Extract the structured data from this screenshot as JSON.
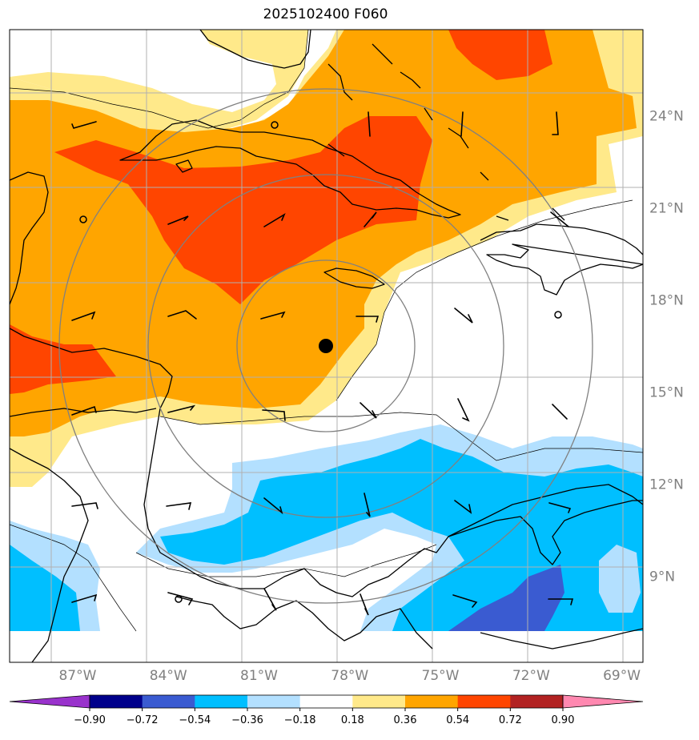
{
  "title": "2025102400 F060",
  "map": {
    "lon_range": [
      -89.25,
      -68.3
    ],
    "lat_range": [
      6.2,
      26.8
    ],
    "lat_ticks": [
      {
        "value": 24,
        "label": "24°N"
      },
      {
        "value": 21,
        "label": "21°N"
      },
      {
        "value": 18,
        "label": "18°N"
      },
      {
        "value": 15,
        "label": "15°N"
      },
      {
        "value": 12,
        "label": "12°N"
      },
      {
        "value": 9,
        "label": "9°N"
      }
    ],
    "lon_ticks": [
      {
        "value": -87,
        "label": "87°W"
      },
      {
        "value": -84,
        "label": "84°W"
      },
      {
        "value": -81,
        "label": "81°W"
      },
      {
        "value": -78,
        "label": "78°W"
      },
      {
        "value": -75,
        "label": "75°W"
      },
      {
        "value": -72,
        "label": "72°W"
      },
      {
        "value": -69,
        "label": "69°W"
      }
    ],
    "storm_center": {
      "lon": -78.0,
      "lat": 16.0
    },
    "range_rings_deg": [
      2.8,
      5.6,
      8.4
    ]
  },
  "colorbar": {
    "ticks": [
      "−0.90",
      "−0.72",
      "−0.54",
      "−0.36",
      "−0.18",
      "0.18",
      "0.36",
      "0.54",
      "0.72",
      "0.90"
    ],
    "colors": [
      "#9932cc",
      "#00008b",
      "#3a5bd1",
      "#00bfff",
      "#b3e0ff",
      "#ffffff",
      "#ffe98a",
      "#ffa500",
      "#ff4500",
      "#b22222",
      "#ff88b0"
    ]
  },
  "colors": {
    "light_yellow": "#ffe98a",
    "orange": "#ffa500",
    "red_orange": "#ff4500",
    "light_blue": "#b3e0ff",
    "deep_sky_blue": "#00bfff",
    "royal_blue": "#3a5bd1"
  }
}
